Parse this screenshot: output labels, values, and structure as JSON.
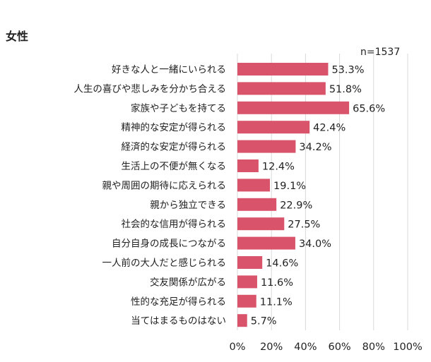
{
  "chart_data": {
    "type": "bar",
    "orientation": "horizontal",
    "title": "女性",
    "annotation": "n=1537",
    "categories": [
      "好きな人と一緒にいられる",
      "人生の喜びや悲しみを分かち合える",
      "家族や子どもを持てる",
      "精神的な安定が得られる",
      "経済的な安定が得られる",
      "生活上の不便が無くなる",
      "親や周囲の期待に応えられる",
      "親から独立できる",
      "社会的な信用が得られる",
      "自分自身の成長につながる",
      "一人前の大人だと感じられる",
      "交友関係が広がる",
      "性的な充足が得られる",
      "当てはまるものはない"
    ],
    "values": [
      53.3,
      51.8,
      65.6,
      42.4,
      34.2,
      12.4,
      19.1,
      22.9,
      27.5,
      34.0,
      14.6,
      11.6,
      11.1,
      5.7
    ],
    "value_labels": [
      "53.3%",
      "51.8%",
      "65.6%",
      "42.4%",
      "34.2%",
      "12.4%",
      "19.1%",
      "22.9%",
      "27.5%",
      "34.0%",
      "14.6%",
      "11.6%",
      "11.1%",
      "5.7%"
    ],
    "xlim": [
      0,
      100
    ],
    "xticks": [
      0,
      20,
      40,
      60,
      80,
      100
    ],
    "xtick_labels": [
      "0%",
      "20%",
      "40%",
      "60%",
      "80%",
      "100%"
    ],
    "grid": true,
    "bar_color": "#D9536A",
    "grid_color": "#D9D9D9"
  }
}
